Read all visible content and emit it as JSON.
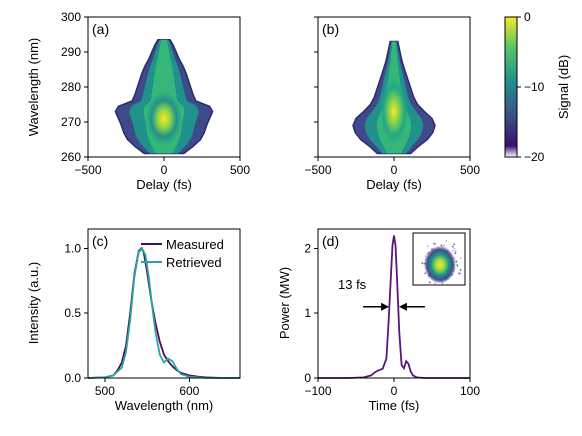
{
  "colors": {
    "measured": "#4b0f59",
    "retrieved": "#2aa6a0",
    "pulse": "#58177a",
    "colormap": [
      "#ffffff",
      "#3b0f70",
      "#3b528b",
      "#21918c",
      "#5ec962",
      "#fde725"
    ]
  },
  "chart_data": [
    {
      "type": "heatmap",
      "panel_label": "(a)",
      "xlabel": "Delay (fs)",
      "ylabel": "Wavelength (nm)",
      "xlim": [
        -500,
        500
      ],
      "ylim": [
        260,
        300
      ],
      "xticks": [
        -500,
        0,
        500
      ],
      "yticks": [
        260,
        270,
        280,
        290,
        300
      ],
      "xtick_labels": [
        "−500",
        "0",
        "500"
      ],
      "ytick_labels": [
        "260",
        "270",
        "280",
        "290",
        "300"
      ],
      "colorbar": {
        "label": "Signal (dB)",
        "range": [
          -20,
          0
        ],
        "ticks": [
          -20,
          -10,
          0
        ],
        "tick_labels": [
          "−20",
          "−10",
          "0"
        ]
      },
      "profile": [
        {
          "wl": 261,
          "w": 130
        },
        {
          "wl": 263,
          "w": 190
        },
        {
          "wl": 265,
          "w": 240
        },
        {
          "wl": 267,
          "w": 265
        },
        {
          "wl": 269,
          "w": 280
        },
        {
          "wl": 271,
          "w": 300
        },
        {
          "wl": 273,
          "w": 320
        },
        {
          "wl": 274.5,
          "w": 300
        },
        {
          "wl": 276,
          "w": 210
        },
        {
          "wl": 278,
          "w": 190
        },
        {
          "wl": 280,
          "w": 175
        },
        {
          "wl": 282,
          "w": 160
        },
        {
          "wl": 284,
          "w": 145
        },
        {
          "wl": 286,
          "w": 125
        },
        {
          "wl": 288,
          "w": 100
        },
        {
          "wl": 290,
          "w": 80
        },
        {
          "wl": 292,
          "w": 60
        },
        {
          "wl": 293.5,
          "w": 40
        }
      ],
      "peak": {
        "delay": 0,
        "wavelength": 271
      }
    },
    {
      "type": "heatmap",
      "panel_label": "(b)",
      "xlabel": "Delay (fs)",
      "ylabel": "",
      "xlim": [
        -500,
        500
      ],
      "ylim": [
        260,
        300
      ],
      "xticks": [
        -500,
        0,
        500
      ],
      "yticks": [
        260,
        270,
        280,
        290,
        300
      ],
      "xtick_labels": [
        "−500",
        "0",
        "500"
      ],
      "ytick_labels": [],
      "profile": [
        {
          "wl": 261,
          "w": 110
        },
        {
          "wl": 263,
          "w": 160
        },
        {
          "wl": 265,
          "w": 220
        },
        {
          "wl": 267,
          "w": 255
        },
        {
          "wl": 269,
          "w": 270
        },
        {
          "wl": 271,
          "w": 250
        },
        {
          "wl": 273,
          "w": 200
        },
        {
          "wl": 275,
          "w": 155
        },
        {
          "wl": 277,
          "w": 130
        },
        {
          "wl": 279,
          "w": 115
        },
        {
          "wl": 281,
          "w": 100
        },
        {
          "wl": 283,
          "w": 85
        },
        {
          "wl": 285,
          "w": 70
        },
        {
          "wl": 287,
          "w": 55
        },
        {
          "wl": 289,
          "w": 45
        },
        {
          "wl": 291,
          "w": 35
        },
        {
          "wl": 293,
          "w": 25
        }
      ],
      "peak": {
        "delay": 0,
        "wavelength": 273
      }
    },
    {
      "type": "line",
      "panel_label": "(c)",
      "xlabel": "Wavelength (nm)",
      "ylabel": "Intensity (a.u.)",
      "xlim": [
        480,
        660
      ],
      "ylim": [
        0,
        1.15
      ],
      "xticks": [
        500,
        600
      ],
      "yticks": [
        0,
        0.5,
        1.0
      ],
      "xtick_labels": [
        "500",
        "600"
      ],
      "ytick_labels": [
        "0.0",
        "0.5",
        "1.0"
      ],
      "legend": "top-right",
      "series": [
        {
          "name": "Measured",
          "x": [
            480,
            500,
            510,
            515,
            520,
            525,
            530,
            535,
            540,
            543,
            546,
            550,
            555,
            560,
            565,
            570,
            575,
            580,
            585,
            590,
            600,
            610,
            620,
            640,
            660
          ],
          "y": [
            0,
            0.005,
            0.02,
            0.06,
            0.12,
            0.25,
            0.5,
            0.8,
            0.98,
            1.0,
            0.97,
            0.82,
            0.6,
            0.42,
            0.28,
            0.18,
            0.13,
            0.09,
            0.06,
            0.04,
            0.02,
            0.01,
            0.005,
            0,
            0
          ]
        },
        {
          "name": "Retrieved",
          "x": [
            480,
            500,
            510,
            520,
            525,
            530,
            535,
            540,
            544,
            548,
            552,
            556,
            560,
            565,
            570,
            575,
            580,
            585,
            590,
            600,
            610,
            620,
            640,
            660
          ],
          "y": [
            0,
            0.005,
            0.02,
            0.08,
            0.2,
            0.45,
            0.78,
            0.97,
            1.0,
            0.95,
            0.78,
            0.55,
            0.35,
            0.18,
            0.12,
            0.15,
            0.13,
            0.07,
            0.03,
            0.01,
            0.005,
            0,
            0,
            0
          ]
        }
      ]
    },
    {
      "type": "line",
      "panel_label": "(d)",
      "xlabel": "Time (fs)",
      "ylabel": "Power (MW)",
      "xlim": [
        -100,
        100
      ],
      "ylim": [
        0,
        2.3
      ],
      "xticks": [
        -100,
        0,
        100
      ],
      "yticks": [
        0,
        1,
        2
      ],
      "xtick_labels": [
        "−100",
        "0",
        "100"
      ],
      "ytick_labels": [
        "0",
        "1",
        "2"
      ],
      "annotation": "13 fs",
      "fwhm": [
        -6.5,
        6.5
      ],
      "series": [
        {
          "x": [
            -100,
            -60,
            -40,
            -30,
            -25,
            -20,
            -15,
            -10,
            -7,
            -4,
            -2,
            0,
            2,
            4,
            7,
            10,
            13,
            16,
            19,
            22,
            25,
            30,
            40,
            60,
            100
          ],
          "y": [
            0,
            0,
            0.01,
            0.04,
            0.09,
            0.12,
            0.14,
            0.3,
            0.9,
            1.6,
            2.05,
            2.2,
            2.05,
            1.55,
            0.7,
            0.2,
            0.15,
            0.26,
            0.22,
            0.1,
            0.04,
            0.01,
            0,
            0,
            0
          ]
        }
      ]
    }
  ]
}
